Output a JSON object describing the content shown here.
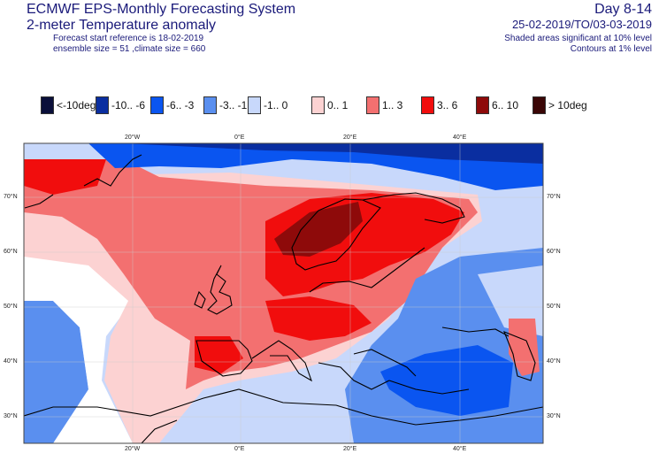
{
  "header": {
    "title_line1": "ECMWF EPS-Monthly Forecasting System",
    "title_line2": "2-meter Temperature anomaly",
    "forecast_start": "Forecast start reference is 18-02-2019",
    "ensemble_info": "ensemble size = 51  ,climate size = 660",
    "day_range": "Day 8-14",
    "date_range": "25-02-2019/TO/03-03-2019",
    "shaded_note": "Shaded areas significant at 10% level",
    "contour_note": "Contours at 1% level"
  },
  "legend": {
    "items": [
      {
        "label": "<-10deg",
        "color": "#0a0f3a"
      },
      {
        "label": "-10.. -6",
        "color": "#0a2ea0"
      },
      {
        "label": "-6.. -3",
        "color": "#0a55f0"
      },
      {
        "label": "-3.. -1",
        "color": "#5a8fef"
      },
      {
        "label": "-1.. 0",
        "color": "#c8d8fb"
      },
      {
        "label": "0.. 1",
        "color": "#fcd2d2"
      },
      {
        "label": "1.. 3",
        "color": "#f37070"
      },
      {
        "label": "3.. 6",
        "color": "#f10d0d"
      },
      {
        "label": "6.. 10",
        "color": "#8e0a0a"
      },
      {
        "label": "> 10deg",
        "color": "#3a0606"
      }
    ]
  },
  "map": {
    "top_lon_labels": [
      "20°W",
      "0°E",
      "20°E",
      "40°E"
    ],
    "bottom_lon_labels": [
      "20°W",
      "0°E",
      "20°E",
      "40°E"
    ],
    "left_lat_labels": [
      "70°N",
      "60°N",
      "50°N",
      "40°N",
      "30°N"
    ],
    "right_lat_labels": [
      "70°N",
      "60°N",
      "50°N",
      "40°N",
      "30°N"
    ]
  }
}
